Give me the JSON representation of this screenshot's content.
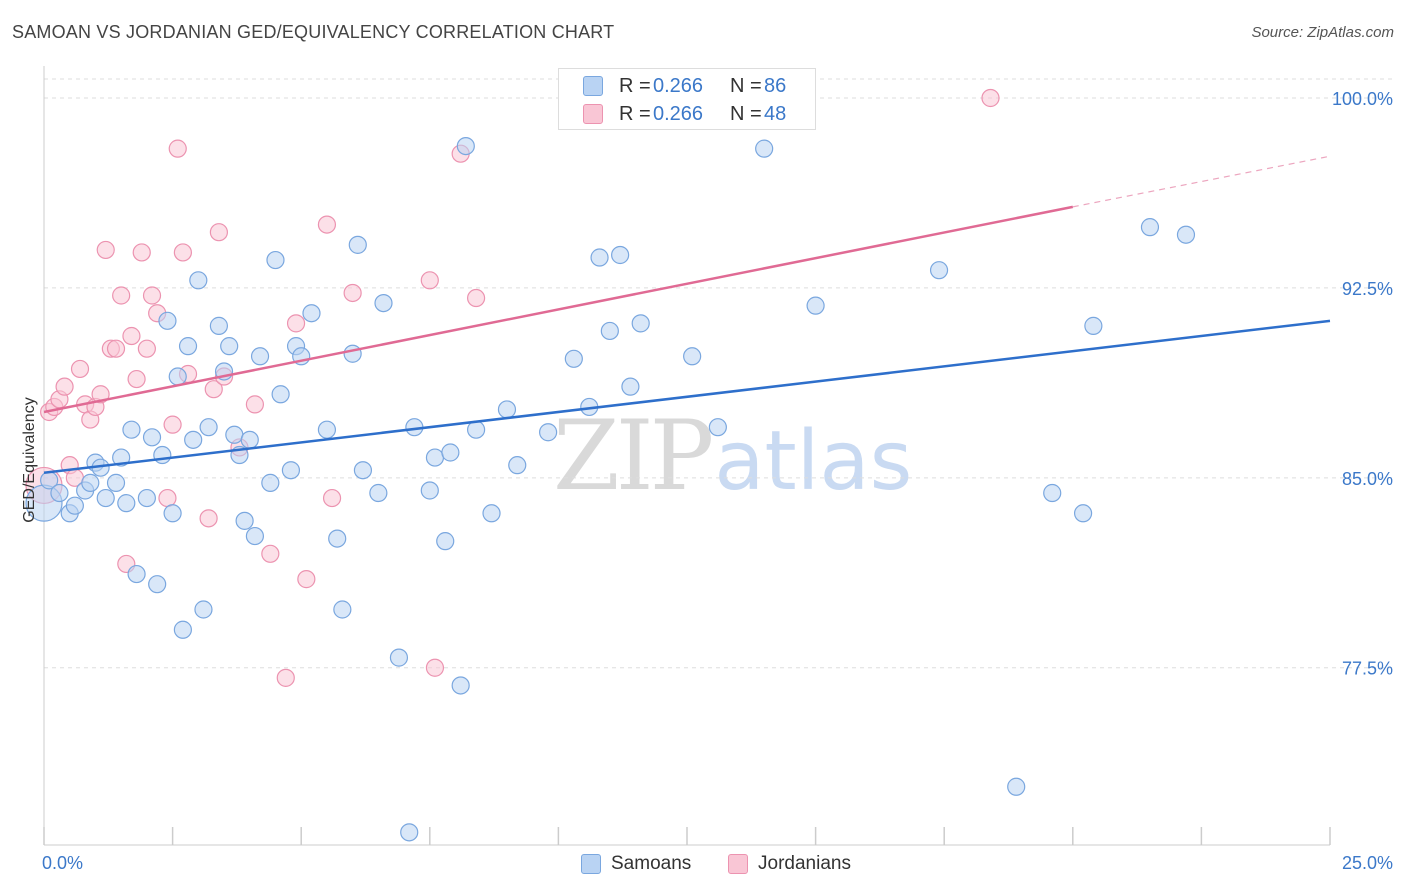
{
  "header": {
    "title": "SAMOAN VS JORDANIAN GED/EQUIVALENCY CORRELATION CHART",
    "source": "Source: ZipAtlas.com"
  },
  "legend": {
    "r_label": "R =",
    "n_label": "N =",
    "series": [
      {
        "name": "Samoans",
        "r": "0.266",
        "n": "86"
      },
      {
        "name": "Jordanians",
        "r": "0.266",
        "n": "48"
      }
    ]
  },
  "watermark": {
    "zip": "ZIP",
    "atlas": "atlas"
  },
  "colors": {
    "samoans_fill": "#b9d3f3",
    "samoans_stroke": "#7aa7df",
    "samoans_line": "#2e6fcb",
    "jordanians_fill": "#f9c6d5",
    "jordanians_stroke": "#ec93b0",
    "jordanians_line": "#e06a94",
    "value_blue": "#3b78c9",
    "grid": "#dddddd",
    "axis_label": "#333333"
  },
  "chart_data": {
    "type": "scatter",
    "title": "SAMOAN VS JORDANIAN GED/EQUIVALENCY CORRELATION CHART",
    "xlabel": "",
    "ylabel": "GED/Equivalency",
    "xlim": [
      0,
      25
    ],
    "ylim": [
      70.5,
      101.5
    ],
    "x_tick_labels": [
      "0.0%",
      "25.0%"
    ],
    "y_ticks": [
      77.5,
      85.0,
      92.5,
      100.0
    ],
    "y_tick_labels": [
      "77.5%",
      "85.0%",
      "92.5%",
      "100.0%"
    ],
    "grid": true,
    "legend_position": "top-center",
    "series": [
      {
        "name": "Samoans",
        "trend": {
          "x": [
            0,
            25
          ],
          "y": [
            85.2,
            91.2
          ],
          "dashed_to": null
        },
        "points": [
          [
            0.0,
            84.0
          ],
          [
            0.1,
            84.9
          ],
          [
            0.3,
            84.4
          ],
          [
            0.5,
            83.6
          ],
          [
            0.6,
            83.9
          ],
          [
            0.8,
            84.5
          ],
          [
            0.9,
            84.8
          ],
          [
            1.0,
            85.6
          ],
          [
            1.1,
            85.4
          ],
          [
            1.2,
            84.2
          ],
          [
            1.4,
            84.8
          ],
          [
            1.5,
            85.8
          ],
          [
            1.6,
            84.0
          ],
          [
            1.7,
            86.9
          ],
          [
            1.8,
            81.2
          ],
          [
            2.0,
            84.2
          ],
          [
            2.1,
            86.6
          ],
          [
            2.2,
            80.8
          ],
          [
            2.3,
            85.9
          ],
          [
            2.4,
            91.2
          ],
          [
            2.5,
            83.6
          ],
          [
            2.6,
            89.0
          ],
          [
            2.7,
            79.0
          ],
          [
            2.8,
            90.2
          ],
          [
            2.9,
            86.5
          ],
          [
            3.0,
            92.8
          ],
          [
            3.1,
            79.8
          ],
          [
            3.2,
            87.0
          ],
          [
            3.4,
            91.0
          ],
          [
            3.5,
            89.2
          ],
          [
            3.6,
            90.2
          ],
          [
            3.7,
            86.7
          ],
          [
            3.8,
            85.9
          ],
          [
            3.9,
            83.3
          ],
          [
            4.0,
            86.5
          ],
          [
            4.1,
            82.7
          ],
          [
            4.2,
            89.8
          ],
          [
            4.4,
            84.8
          ],
          [
            4.5,
            93.6
          ],
          [
            4.6,
            88.3
          ],
          [
            4.8,
            85.3
          ],
          [
            4.9,
            90.2
          ],
          [
            5.0,
            89.8
          ],
          [
            5.2,
            91.5
          ],
          [
            5.5,
            86.9
          ],
          [
            5.7,
            82.6
          ],
          [
            5.8,
            79.8
          ],
          [
            6.0,
            89.9
          ],
          [
            6.1,
            94.2
          ],
          [
            6.2,
            85.3
          ],
          [
            6.5,
            84.4
          ],
          [
            6.6,
            91.9
          ],
          [
            6.9,
            77.9
          ],
          [
            7.1,
            71.0
          ],
          [
            7.2,
            87.0
          ],
          [
            7.5,
            84.5
          ],
          [
            7.6,
            85.8
          ],
          [
            7.8,
            82.5
          ],
          [
            7.9,
            86.0
          ],
          [
            8.1,
            76.8
          ],
          [
            8.2,
            98.1
          ],
          [
            8.4,
            86.9
          ],
          [
            8.7,
            83.6
          ],
          [
            9.0,
            87.7
          ],
          [
            9.2,
            85.5
          ],
          [
            9.8,
            86.8
          ],
          [
            10.3,
            89.7
          ],
          [
            10.6,
            87.8
          ],
          [
            10.8,
            93.7
          ],
          [
            11.0,
            90.8
          ],
          [
            11.2,
            93.8
          ],
          [
            11.4,
            88.6
          ],
          [
            11.6,
            91.1
          ],
          [
            12.6,
            89.8
          ],
          [
            13.1,
            87.0
          ],
          [
            14.0,
            98.0
          ],
          [
            15.0,
            91.8
          ],
          [
            17.4,
            93.2
          ],
          [
            18.9,
            72.8
          ],
          [
            19.6,
            84.4
          ],
          [
            20.2,
            83.6
          ],
          [
            20.4,
            91.0
          ],
          [
            21.5,
            94.9
          ],
          [
            22.2,
            94.6
          ]
        ],
        "sizes": {
          "large_point_index": 0
        }
      },
      {
        "name": "Jordanians",
        "trend": {
          "x": [
            0,
            20
          ],
          "y": [
            87.6,
            95.7
          ],
          "dashed_to": [
            25,
            97.7
          ]
        },
        "points": [
          [
            0.0,
            84.7
          ],
          [
            0.1,
            87.6
          ],
          [
            0.2,
            87.8
          ],
          [
            0.3,
            88.1
          ],
          [
            0.4,
            88.6
          ],
          [
            0.5,
            85.5
          ],
          [
            0.6,
            85.0
          ],
          [
            0.7,
            89.3
          ],
          [
            0.8,
            87.9
          ],
          [
            0.9,
            87.3
          ],
          [
            1.0,
            87.8
          ],
          [
            1.1,
            88.3
          ],
          [
            1.2,
            94.0
          ],
          [
            1.3,
            90.1
          ],
          [
            1.4,
            90.1
          ],
          [
            1.5,
            92.2
          ],
          [
            1.6,
            81.6
          ],
          [
            1.7,
            90.6
          ],
          [
            1.8,
            88.9
          ],
          [
            1.9,
            93.9
          ],
          [
            2.0,
            90.1
          ],
          [
            2.1,
            92.2
          ],
          [
            2.2,
            91.5
          ],
          [
            2.4,
            84.2
          ],
          [
            2.5,
            87.1
          ],
          [
            2.6,
            98.0
          ],
          [
            2.7,
            93.9
          ],
          [
            2.8,
            89.1
          ],
          [
            3.2,
            83.4
          ],
          [
            3.3,
            88.5
          ],
          [
            3.4,
            94.7
          ],
          [
            3.5,
            89.0
          ],
          [
            3.8,
            86.2
          ],
          [
            4.1,
            87.9
          ],
          [
            4.4,
            82.0
          ],
          [
            4.7,
            77.1
          ],
          [
            4.9,
            91.1
          ],
          [
            5.1,
            81.0
          ],
          [
            5.5,
            95.0
          ],
          [
            5.6,
            84.2
          ],
          [
            6.0,
            92.3
          ],
          [
            7.5,
            92.8
          ],
          [
            7.6,
            77.5
          ],
          [
            8.1,
            97.8
          ],
          [
            8.4,
            92.1
          ],
          [
            18.4,
            100.0
          ]
        ],
        "sizes": {
          "large_point_index": 0
        }
      }
    ]
  }
}
